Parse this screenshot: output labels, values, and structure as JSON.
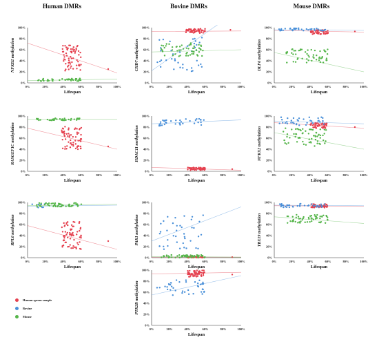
{
  "columns": [
    "Human DMRs",
    "Bovine DMRs",
    "Mouse DMRs"
  ],
  "legend": [
    {
      "label": "Human sperm sample",
      "color": "#e5414f"
    },
    {
      "label": "Bovine",
      "color": "#4a90d9"
    },
    {
      "label": "Mouse",
      "color": "#55b54a"
    }
  ],
  "chart_data": [
    {
      "type": "scatter",
      "ylabel": "NFKB2 methylation",
      "xlabel": "Lifespan",
      "xlim": [
        0,
        100
      ],
      "ylim": [
        0,
        100
      ],
      "ticks": [
        "0%",
        "20%",
        "40%",
        "60%",
        "80%",
        "100%"
      ],
      "series": [
        {
          "name": "Human sperm sample",
          "color": "#e5414f",
          "x_range": [
            38,
            60
          ],
          "y_range": [
            22,
            68
          ],
          "n": 65,
          "outlier": [
            90,
            25
          ],
          "trend": [
            [
              0,
              72
            ],
            [
              100,
              18
            ]
          ]
        },
        {
          "name": "Mouse",
          "color": "#55b54a",
          "x_range": [
            10,
            60
          ],
          "y_range": [
            3,
            8
          ],
          "n": 40,
          "trend": [
            [
              0,
              4
            ],
            [
              100,
              7
            ]
          ]
        }
      ]
    },
    {
      "type": "scatter",
      "ylabel": "CHD7 methylation",
      "xlabel": "Lifespan",
      "xlim": [
        0,
        100
      ],
      "ylim": [
        0,
        100
      ],
      "ticks": [
        "0%",
        "20%",
        "40%",
        "60%",
        "80%",
        "100%"
      ],
      "series": [
        {
          "name": "Human sperm sample",
          "color": "#e5414f",
          "x_range": [
            38,
            60
          ],
          "y_range": [
            90,
            98
          ],
          "n": 55,
          "outlier": [
            88,
            96
          ],
          "trend": [
            [
              0,
              93
            ],
            [
              100,
              94
            ]
          ]
        },
        {
          "name": "Bovine",
          "color": "#4a90d9",
          "x_range": [
            5,
            60
          ],
          "y_range": [
            18,
            82
          ],
          "n": 40,
          "trend": [
            [
              0,
              22
            ],
            [
              100,
              135
            ]
          ]
        },
        {
          "name": "Mouse",
          "color": "#55b54a",
          "x_range": [
            10,
            58
          ],
          "y_range": [
            48,
            72
          ],
          "n": 55,
          "trend": [
            [
              0,
              56
            ],
            [
              100,
              60
            ]
          ]
        }
      ]
    },
    {
      "type": "scatter",
      "ylabel": "DLF6 methylation",
      "xlabel": "Lifespan",
      "xlim": [
        0,
        100
      ],
      "ylim": [
        0,
        100
      ],
      "ticks": [
        "0%",
        "20%",
        "40%",
        "60%",
        "80%",
        "100%"
      ],
      "series": [
        {
          "name": "Human sperm sample",
          "color": "#e5414f",
          "x_range": [
            40,
            60
          ],
          "y_range": [
            88,
            96
          ],
          "n": 50,
          "outlier": [
            90,
            93
          ],
          "trend": [
            [
              0,
              95
            ],
            [
              100,
              92
            ]
          ]
        },
        {
          "name": "Bovine",
          "color": "#4a90d9",
          "x_range": [
            5,
            58
          ],
          "y_range": [
            94,
            99
          ],
          "n": 35,
          "trend": [
            [
              0,
              96
            ],
            [
              100,
              95
            ]
          ]
        },
        {
          "name": "Mouse",
          "color": "#55b54a",
          "x_range": [
            12,
            60
          ],
          "y_range": [
            36,
            62
          ],
          "n": 55,
          "trend": [
            [
              0,
              55
            ],
            [
              100,
              20
            ]
          ]
        }
      ]
    },
    {
      "type": "scatter",
      "ylabel": "RASGEF1C methylation",
      "xlabel": "Lifespan",
      "xlim": [
        0,
        100
      ],
      "ylim": [
        0,
        100
      ],
      "ticks": [
        "0%",
        "20%",
        "40%",
        "60%",
        "80%",
        "100%"
      ],
      "series": [
        {
          "name": "Human sperm sample",
          "color": "#e5414f",
          "x_range": [
            38,
            60
          ],
          "y_range": [
            40,
            82
          ],
          "n": 65,
          "outlier": [
            90,
            45
          ],
          "trend": [
            [
              0,
              78
            ],
            [
              100,
              40
            ]
          ]
        },
        {
          "name": "Mouse",
          "color": "#55b54a",
          "x_range": [
            10,
            60
          ],
          "y_range": [
            92,
            96
          ],
          "n": 40,
          "trend": [
            [
              0,
              94
            ],
            [
              100,
              94
            ]
          ]
        }
      ]
    },
    {
      "type": "scatter",
      "ylabel": "HDAC11 methylation",
      "xlabel": "Lifespan",
      "xlim": [
        0,
        100
      ],
      "ylim": [
        0,
        100
      ],
      "ticks": [
        "0%",
        "20%",
        "40%",
        "60%",
        "80%",
        "100%"
      ],
      "series": [
        {
          "name": "Human sperm sample",
          "color": "#e5414f",
          "x_range": [
            40,
            60
          ],
          "y_range": [
            2,
            7
          ],
          "n": 50,
          "outlier": [
            90,
            4
          ],
          "trend": [
            [
              0,
              7
            ],
            [
              100,
              2
            ]
          ]
        },
        {
          "name": "Bovine",
          "color": "#4a90d9",
          "x_range": [
            5,
            60
          ],
          "y_range": [
            82,
            95
          ],
          "n": 35,
          "trend": [
            [
              0,
              86
            ],
            [
              100,
              93
            ]
          ]
        }
      ]
    },
    {
      "type": "scatter",
      "ylabel": "NFKX2 methylation",
      "xlabel": "Lifespan",
      "xlim": [
        0,
        100
      ],
      "ylim": [
        0,
        100
      ],
      "ticks": [
        "0%",
        "20%",
        "40%",
        "60%",
        "80%",
        "100%"
      ],
      "series": [
        {
          "name": "Human sperm sample",
          "color": "#e5414f",
          "x_range": [
            40,
            60
          ],
          "y_range": [
            78,
            88
          ],
          "n": 50,
          "outlier": [
            90,
            80
          ],
          "trend": [
            [
              0,
              88
            ],
            [
              100,
              78
            ]
          ]
        },
        {
          "name": "Bovine",
          "color": "#4a90d9",
          "x_range": [
            5,
            58
          ],
          "y_range": [
            82,
            98
          ],
          "n": 35,
          "trend": [
            [
              0,
              91
            ],
            [
              100,
              86
            ]
          ]
        },
        {
          "name": "Mouse",
          "color": "#55b54a",
          "x_range": [
            10,
            60
          ],
          "y_range": [
            45,
            78
          ],
          "n": 65,
          "trend": [
            [
              0,
              70
            ],
            [
              100,
              40
            ]
          ]
        }
      ]
    },
    {
      "type": "scatter",
      "ylabel": "RPL6 methylation",
      "xlabel": "Lifespan",
      "xlim": [
        0,
        100
      ],
      "ylim": [
        0,
        100
      ],
      "ticks": [
        "0%",
        "20%",
        "40%",
        "60%",
        "80%",
        "100%"
      ],
      "series": [
        {
          "name": "Human sperm sample",
          "color": "#e5414f",
          "x_range": [
            38,
            60
          ],
          "y_range": [
            15,
            65
          ],
          "n": 70,
          "outlier": [
            90,
            30
          ],
          "trend": [
            [
              0,
              58
            ],
            [
              100,
              15
            ]
          ]
        },
        {
          "name": "Bovine",
          "color": "#4a90d9",
          "x_range": [
            5,
            20
          ],
          "y_range": [
            90,
            97
          ],
          "n": 8,
          "trend": [
            [
              0,
              93
            ],
            [
              100,
              95
            ]
          ]
        },
        {
          "name": "Mouse",
          "color": "#55b54a",
          "x_range": [
            10,
            60
          ],
          "y_range": [
            92,
            99
          ],
          "n": 55,
          "trend": [
            [
              0,
              94
            ],
            [
              100,
              97
            ]
          ]
        }
      ]
    },
    {
      "type": "scatter",
      "ylabel": "PAK1 methylation",
      "xlabel": "Lifespan",
      "xlim": [
        0,
        100
      ],
      "ylim": [
        0,
        100
      ],
      "ticks": [
        "0%",
        "20%",
        "40%",
        "60%",
        "80%",
        "100%"
      ],
      "series": [
        {
          "name": "Human sperm sample",
          "color": "#e5414f",
          "x_range": [
            40,
            60
          ],
          "y_range": [
            0,
            2
          ],
          "n": 40,
          "outlier": [
            90,
            1
          ],
          "trend": [
            [
              0,
              1
            ],
            [
              100,
              1
            ]
          ]
        },
        {
          "name": "Bovine",
          "color": "#4a90d9",
          "x_range": [
            5,
            58
          ],
          "y_range": [
            15,
            78
          ],
          "n": 40,
          "trend": [
            [
              0,
              30
            ],
            [
              100,
              92
            ]
          ]
        },
        {
          "name": "Mouse",
          "color": "#55b54a",
          "x_range": [
            10,
            60
          ],
          "y_range": [
            0,
            5
          ],
          "n": 50,
          "trend": [
            [
              0,
              2
            ],
            [
              100,
              1
            ]
          ]
        }
      ]
    },
    {
      "type": "scatter",
      "ylabel": "TBX19 methylation",
      "xlabel": "Lifespan",
      "xlim": [
        0,
        100
      ],
      "ylim": [
        0,
        100
      ],
      "ticks": [
        "0%",
        "20%",
        "40%",
        "60%",
        "80%",
        "100%"
      ],
      "series": [
        {
          "name": "Human sperm sample",
          "color": "#e5414f",
          "x_range": [
            40,
            60
          ],
          "y_range": [
            90,
            97
          ],
          "n": 45,
          "trend": [
            [
              0,
              94
            ],
            [
              100,
              93
            ]
          ]
        },
        {
          "name": "Bovine",
          "color": "#4a90d9",
          "x_range": [
            5,
            58
          ],
          "y_range": [
            91,
            98
          ],
          "n": 35,
          "trend": [
            [
              0,
              95
            ],
            [
              100,
              94
            ]
          ]
        },
        {
          "name": "Mouse",
          "color": "#55b54a",
          "x_range": [
            12,
            60
          ],
          "y_range": [
            62,
            78
          ],
          "n": 55,
          "trend": [
            [
              0,
              74
            ],
            [
              100,
              62
            ]
          ]
        }
      ]
    },
    {
      "type": "scatter",
      "ylabel": "PTK2B methylation",
      "xlabel": "Lifespan",
      "xlim": [
        0,
        100
      ],
      "ylim": [
        0,
        100
      ],
      "ticks": [
        "0%",
        "20%",
        "40%",
        "60%",
        "80%",
        "100%"
      ],
      "series": [
        {
          "name": "Human sperm sample",
          "color": "#e5414f",
          "x_range": [
            40,
            60
          ],
          "y_range": [
            88,
            100
          ],
          "n": 55,
          "outlier": [
            90,
            92
          ],
          "trend": [
            [
              0,
              93
            ],
            [
              100,
              96
            ]
          ]
        },
        {
          "name": "Bovine",
          "color": "#4a90d9",
          "x_range": [
            5,
            60
          ],
          "y_range": [
            52,
            82
          ],
          "n": 40,
          "trend": [
            [
              0,
              55
            ],
            [
              100,
              90
            ]
          ]
        }
      ]
    }
  ]
}
